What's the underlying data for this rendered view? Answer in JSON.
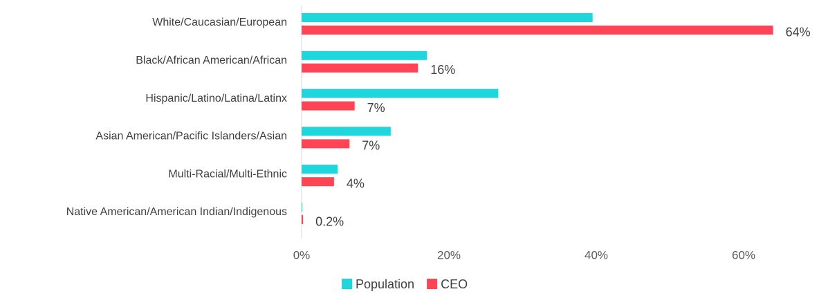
{
  "chart_data": {
    "type": "bar",
    "orientation": "horizontal",
    "categories": [
      "White/Caucasian/European",
      "Black/African American/African",
      "Hispanic/Latino/Latina/Latinx",
      "Asian American/Pacific Islanders/Asian",
      "Multi-Racial/Multi-Ethnic",
      "Native American/American Indian/Indigenous"
    ],
    "series": [
      {
        "name": "Population",
        "color": "#1ed6db",
        "values": [
          39.5,
          17.0,
          26.7,
          12.1,
          4.9,
          0.1
        ]
      },
      {
        "name": "CEO",
        "color": "#ff4455",
        "values": [
          64,
          15.8,
          7.2,
          6.5,
          4.4,
          0.2
        ],
        "value_labels": [
          "64%",
          "16%",
          "7%",
          "7%",
          "4%",
          "0.2%"
        ]
      }
    ],
    "xlim": [
      0,
      70
    ],
    "xticks": [
      {
        "value": 0,
        "label": "0%"
      },
      {
        "value": 20,
        "label": "20%"
      },
      {
        "value": 40,
        "label": "40%"
      },
      {
        "value": 60,
        "label": "60%"
      }
    ],
    "legend": "bottom"
  }
}
